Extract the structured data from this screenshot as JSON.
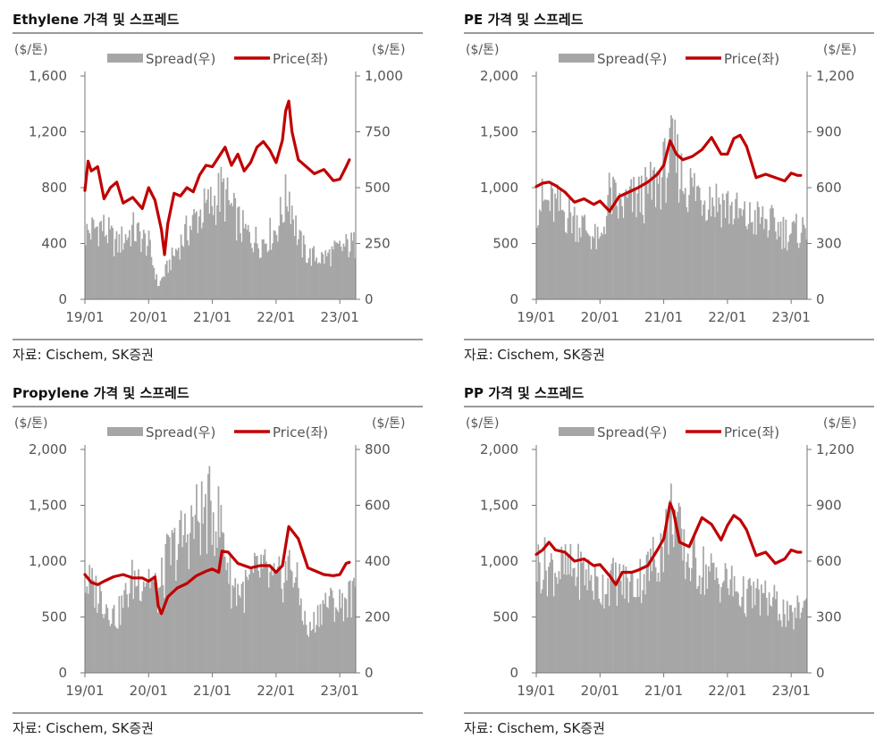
{
  "chart_data": [
    {
      "type": "bar",
      "title": "Ethylene 가격 및 스프레드",
      "left_unit": "($/톤)",
      "right_unit": "($/톤)",
      "source": "자료: Cischem, SK증권",
      "legend": {
        "spread": "Spread(우)",
        "price": "Price(좌)"
      },
      "colors": {
        "spread": "#a6a6a6",
        "price": "#c00000"
      },
      "left_ticks": [
        "0",
        "400",
        "800",
        "1,200",
        "1,600"
      ],
      "right_ticks": [
        "0",
        "250",
        "500",
        "750",
        "1,000"
      ],
      "ylim_left": [
        0,
        1600
      ],
      "ylim_right": [
        0,
        1000
      ],
      "x_ticks": [
        "19/01",
        "20/01",
        "21/01",
        "22/01",
        "23/01"
      ],
      "series": [
        {
          "name": "Spread(우)",
          "axis": "right",
          "kind": "bar",
          "x": [
            2019.0,
            2019.25,
            2019.5,
            2019.75,
            2020.0,
            2020.15,
            2020.3,
            2020.5,
            2020.75,
            2021.0,
            2021.15,
            2021.35,
            2021.5,
            2021.75,
            2022.0,
            2022.2,
            2022.35,
            2022.5,
            2022.75,
            2023.0,
            2023.15
          ],
          "values": [
            300,
            340,
            250,
            320,
            250,
            60,
            150,
            260,
            380,
            440,
            500,
            380,
            310,
            260,
            320,
            500,
            270,
            200,
            190,
            230,
            250
          ]
        },
        {
          "name": "Price(좌)",
          "axis": "left",
          "kind": "line",
          "x": [
            2019.0,
            2019.05,
            2019.1,
            2019.2,
            2019.3,
            2019.4,
            2019.5,
            2019.6,
            2019.75,
            2019.9,
            2020.0,
            2020.1,
            2020.2,
            2020.25,
            2020.3,
            2020.4,
            2020.5,
            2020.6,
            2020.7,
            2020.8,
            2020.9,
            2021.0,
            2021.1,
            2021.2,
            2021.3,
            2021.4,
            2021.5,
            2021.6,
            2021.7,
            2021.8,
            2021.9,
            2022.0,
            2022.1,
            2022.15,
            2022.2,
            2022.25,
            2022.35,
            2022.5,
            2022.6,
            2022.75,
            2022.9,
            2023.0,
            2023.1,
            2023.15
          ],
          "values": [
            780,
            990,
            920,
            950,
            720,
            800,
            840,
            690,
            730,
            650,
            800,
            710,
            500,
            320,
            540,
            760,
            740,
            800,
            770,
            890,
            960,
            950,
            1020,
            1090,
            960,
            1040,
            920,
            980,
            1090,
            1130,
            1070,
            980,
            1140,
            1350,
            1420,
            1200,
            1000,
            940,
            900,
            930,
            850,
            860,
            950,
            1000
          ]
        }
      ]
    },
    {
      "type": "bar",
      "title": "PE 가격 및 스프레드",
      "left_unit": "($/톤)",
      "right_unit": "($/톤)",
      "source": "자료: Cischem, SK증권",
      "legend": {
        "spread": "Spread(우)",
        "price": "Price(좌)"
      },
      "colors": {
        "spread": "#a6a6a6",
        "price": "#c00000"
      },
      "left_ticks": [
        "0",
        "500",
        "1,000",
        "1,500",
        "2,000"
      ],
      "right_ticks": [
        "0",
        "300",
        "600",
        "900",
        "1,200"
      ],
      "ylim_left": [
        0,
        2000
      ],
      "ylim_right": [
        0,
        1200
      ],
      "x_ticks": [
        "19/01",
        "20/01",
        "21/01",
        "22/01",
        "23/01"
      ],
      "series": [
        {
          "name": "Spread(우)",
          "axis": "right",
          "kind": "bar",
          "x": [
            2019.0,
            2019.25,
            2019.5,
            2019.75,
            2020.0,
            2020.15,
            2020.3,
            2020.5,
            2020.75,
            2021.0,
            2021.15,
            2021.3,
            2021.5,
            2021.75,
            2022.0,
            2022.25,
            2022.5,
            2022.75,
            2023.0,
            2023.15
          ],
          "values": [
            540,
            520,
            470,
            400,
            300,
            580,
            500,
            540,
            580,
            700,
            820,
            650,
            600,
            560,
            520,
            440,
            440,
            400,
            360,
            380
          ]
        },
        {
          "name": "Price(좌)",
          "axis": "left",
          "kind": "line",
          "x": [
            2019.0,
            2019.1,
            2019.2,
            2019.3,
            2019.45,
            2019.6,
            2019.75,
            2019.9,
            2020.0,
            2020.15,
            2020.3,
            2020.45,
            2020.6,
            2020.75,
            2020.9,
            2021.0,
            2021.1,
            2021.2,
            2021.3,
            2021.45,
            2021.6,
            2021.75,
            2021.9,
            2022.0,
            2022.1,
            2022.2,
            2022.3,
            2022.45,
            2022.6,
            2022.75,
            2022.9,
            2023.0,
            2023.1,
            2023.15
          ],
          "values": [
            1010,
            1040,
            1050,
            1020,
            960,
            870,
            900,
            850,
            880,
            790,
            920,
            960,
            1000,
            1050,
            1120,
            1200,
            1420,
            1300,
            1250,
            1280,
            1340,
            1450,
            1300,
            1300,
            1440,
            1470,
            1370,
            1090,
            1120,
            1090,
            1060,
            1130,
            1110,
            1110
          ]
        }
      ]
    },
    {
      "type": "bar",
      "title": "Propylene 가격 및 스프레드",
      "left_unit": "($/톤)",
      "right_unit": "($/톤)",
      "source": "자료: Cischem, SK증권",
      "legend": {
        "spread": "Spread(우)",
        "price": "Price(좌)"
      },
      "colors": {
        "spread": "#a6a6a6",
        "price": "#c00000"
      },
      "left_ticks": [
        "0",
        "500",
        "1,000",
        "1,500",
        "2,000"
      ],
      "right_ticks": [
        "0",
        "200",
        "400",
        "600",
        "800"
      ],
      "ylim_left": [
        0,
        2000
      ],
      "ylim_right": [
        0,
        800
      ],
      "x_ticks": [
        "19/01",
        "20/01",
        "21/01",
        "22/01",
        "23/01"
      ],
      "series": [
        {
          "name": "Spread(우)",
          "axis": "right",
          "kind": "bar",
          "x": [
            2019.0,
            2019.25,
            2019.5,
            2019.75,
            2020.0,
            2020.15,
            2020.3,
            2020.5,
            2020.75,
            2021.0,
            2021.15,
            2021.3,
            2021.5,
            2021.75,
            2022.0,
            2022.25,
            2022.5,
            2022.75,
            2023.0,
            2023.15
          ],
          "values": [
            340,
            280,
            200,
            340,
            360,
            280,
            420,
            480,
            560,
            600,
            530,
            320,
            300,
            380,
            320,
            400,
            140,
            260,
            250,
            280
          ]
        },
        {
          "name": "Price(좌)",
          "axis": "left",
          "kind": "line",
          "x": [
            2019.0,
            2019.1,
            2019.2,
            2019.3,
            2019.45,
            2019.6,
            2019.75,
            2019.9,
            2020.0,
            2020.1,
            2020.15,
            2020.2,
            2020.3,
            2020.45,
            2020.6,
            2020.75,
            2020.9,
            2021.0,
            2021.1,
            2021.15,
            2021.25,
            2021.4,
            2021.6,
            2021.75,
            2021.9,
            2022.0,
            2022.1,
            2022.2,
            2022.35,
            2022.5,
            2022.75,
            2022.9,
            2023.0,
            2023.1,
            2023.15
          ],
          "values": [
            880,
            810,
            790,
            820,
            860,
            880,
            850,
            850,
            820,
            860,
            600,
            530,
            680,
            760,
            800,
            870,
            910,
            930,
            900,
            1090,
            1080,
            980,
            940,
            960,
            960,
            900,
            960,
            1310,
            1200,
            940,
            880,
            870,
            880,
            980,
            990
          ]
        }
      ]
    },
    {
      "type": "bar",
      "title": "PP 가격 및 스프레드",
      "left_unit": "($/톤)",
      "right_unit": "($/톤)",
      "source": "자료: Cischem, SK증권",
      "legend": {
        "spread": "Spread(우)",
        "price": "Price(좌)"
      },
      "colors": {
        "spread": "#a6a6a6",
        "price": "#c00000"
      },
      "left_ticks": [
        "0",
        "500",
        "1,000",
        "1,500",
        "2,000"
      ],
      "right_ticks": [
        "0",
        "300",
        "600",
        "900",
        "1,200"
      ],
      "ylim_left": [
        0,
        2000
      ],
      "ylim_right": [
        0,
        1200
      ],
      "x_ticks": [
        "19/01",
        "20/01",
        "21/01",
        "22/01",
        "23/01"
      ],
      "series": [
        {
          "name": "Spread(우)",
          "axis": "right",
          "kind": "bar",
          "x": [
            2019.0,
            2019.25,
            2019.5,
            2019.75,
            2020.0,
            2020.15,
            2020.3,
            2020.5,
            2020.75,
            2021.0,
            2021.15,
            2021.3,
            2021.5,
            2021.75,
            2022.0,
            2022.25,
            2022.5,
            2022.75,
            2023.0,
            2023.15
          ],
          "values": [
            600,
            580,
            560,
            560,
            460,
            510,
            500,
            480,
            560,
            720,
            920,
            650,
            600,
            540,
            500,
            420,
            420,
            380,
            290,
            370
          ]
        },
        {
          "name": "Price(좌)",
          "axis": "left",
          "kind": "line",
          "x": [
            2019.0,
            2019.1,
            2019.2,
            2019.3,
            2019.45,
            2019.6,
            2019.75,
            2019.9,
            2020.0,
            2020.15,
            2020.25,
            2020.35,
            2020.5,
            2020.6,
            2020.75,
            2020.9,
            2021.0,
            2021.1,
            2021.15,
            2021.25,
            2021.4,
            2021.6,
            2021.75,
            2021.9,
            2022.0,
            2022.1,
            2022.2,
            2022.3,
            2022.45,
            2022.6,
            2022.75,
            2022.9,
            2023.0,
            2023.1,
            2023.15
          ],
          "values": [
            1060,
            1100,
            1170,
            1100,
            1080,
            1000,
            1020,
            960,
            970,
            870,
            790,
            900,
            900,
            920,
            960,
            1100,
            1200,
            1520,
            1450,
            1170,
            1130,
            1390,
            1330,
            1190,
            1320,
            1410,
            1370,
            1280,
            1050,
            1080,
            980,
            1020,
            1100,
            1080,
            1080
          ]
        }
      ]
    }
  ]
}
